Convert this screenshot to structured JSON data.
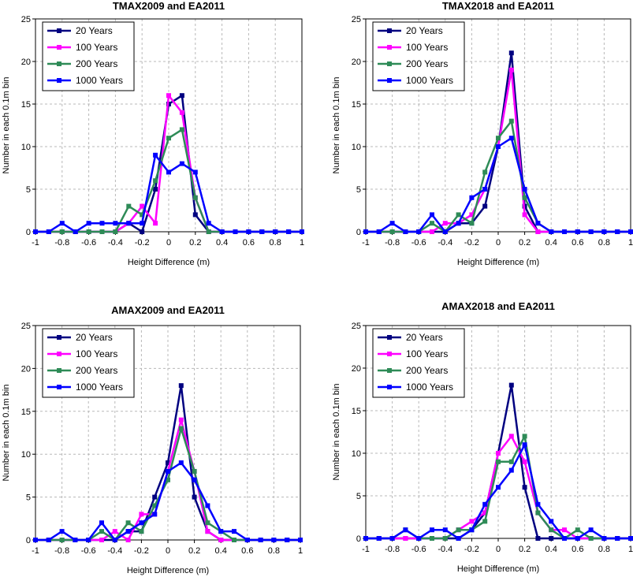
{
  "chart_data": [
    {
      "type": "line",
      "title": "TMAX2009 and EA2011",
      "xlabel": "Height Difference (m)",
      "ylabel": "Number in each 0.1m bin",
      "xlim": [
        -1,
        1
      ],
      "ylim": [
        0,
        25
      ],
      "xticks": [
        "-1",
        "-0.8",
        "-0.6",
        "-0.4",
        "-0.2",
        "0",
        "0.2",
        "0.4",
        "0.6",
        "0.8",
        "1"
      ],
      "yticks": [
        "0",
        "5",
        "10",
        "15",
        "20",
        "25"
      ],
      "grid": true,
      "legend_position": "top-left",
      "x": [
        -1,
        -0.9,
        -0.8,
        -0.7,
        -0.6,
        -0.5,
        -0.4,
        -0.3,
        -0.2,
        -0.1,
        0,
        0.1,
        0.2,
        0.3,
        0.4,
        0.5,
        0.6,
        0.7,
        0.8,
        0.9,
        1
      ],
      "series": [
        {
          "name": "20 Years",
          "color": "#000080",
          "values": [
            0,
            0,
            0,
            0,
            0,
            0,
            0,
            1,
            0,
            5,
            15,
            16,
            2,
            0,
            0,
            0,
            0,
            0,
            0,
            0,
            0
          ]
        },
        {
          "name": "100 Years",
          "color": "#ff00ff",
          "values": [
            0,
            0,
            0,
            0,
            0,
            0,
            0,
            1,
            3,
            1,
            16,
            14,
            4,
            0,
            0,
            0,
            0,
            0,
            0,
            0,
            0
          ]
        },
        {
          "name": "200 Years",
          "color": "#2e8b57",
          "values": [
            0,
            0,
            0,
            0,
            0,
            0,
            0,
            3,
            2,
            6,
            11,
            12,
            4,
            0,
            0,
            0,
            0,
            0,
            0,
            0,
            0
          ]
        },
        {
          "name": "1000 Years",
          "color": "#0000ff",
          "values": [
            0,
            0,
            1,
            0,
            1,
            1,
            1,
            1,
            1,
            9,
            7,
            8,
            7,
            1,
            0,
            0,
            0,
            0,
            0,
            0,
            0
          ]
        }
      ]
    },
    {
      "type": "line",
      "title": "TMAX2018 and EA2011",
      "xlabel": "Height Difference (m)",
      "ylabel": "Number in each 0.1m bin",
      "xlim": [
        -1,
        1
      ],
      "ylim": [
        0,
        25
      ],
      "xticks": [
        "-1",
        "-0.8",
        "-0.6",
        "-0.4",
        "-0.2",
        "0",
        "0.2",
        "0.4",
        "0.6",
        "0.8",
        "1"
      ],
      "yticks": [
        "0",
        "5",
        "10",
        "15",
        "20",
        "25"
      ],
      "grid": true,
      "legend_position": "top-left",
      "x": [
        -1,
        -0.9,
        -0.8,
        -0.7,
        -0.6,
        -0.5,
        -0.4,
        -0.3,
        -0.2,
        -0.1,
        0,
        0.1,
        0.2,
        0.3,
        0.4,
        0.5,
        0.6,
        0.7,
        0.8,
        0.9,
        1
      ],
      "series": [
        {
          "name": "20 Years",
          "color": "#000080",
          "values": [
            0,
            0,
            0,
            0,
            0,
            0,
            0,
            1,
            1,
            3,
            10,
            21,
            3,
            0,
            0,
            0,
            0,
            0,
            0,
            0,
            0
          ]
        },
        {
          "name": "100 Years",
          "color": "#ff00ff",
          "values": [
            0,
            0,
            0,
            0,
            0,
            0,
            1,
            1,
            2,
            5,
            10,
            19,
            2,
            0,
            0,
            0,
            0,
            0,
            0,
            0,
            0
          ]
        },
        {
          "name": "200 Years",
          "color": "#2e8b57",
          "values": [
            0,
            0,
            0,
            0,
            0,
            1,
            0,
            2,
            1,
            7,
            11,
            13,
            4,
            1,
            0,
            0,
            0,
            0,
            0,
            0,
            0
          ]
        },
        {
          "name": "1000 Years",
          "color": "#0000ff",
          "values": [
            0,
            0,
            1,
            0,
            0,
            2,
            0,
            1,
            4,
            5,
            10,
            11,
            5,
            1,
            0,
            0,
            0,
            0,
            0,
            0,
            0
          ]
        }
      ]
    },
    {
      "type": "line",
      "title": "AMAX2009 and EA2011",
      "xlabel": "Height Difference (m)",
      "ylabel": "Number in each 0.1m bin",
      "xlim": [
        -1,
        1
      ],
      "ylim": [
        0,
        25
      ],
      "xticks": [
        "-1",
        "-0.8",
        "-0.6",
        "-0.4",
        "-0.2",
        "0",
        "0.2",
        "0.4",
        "0.6",
        "0.8",
        "1"
      ],
      "yticks": [
        "0",
        "5",
        "10",
        "15",
        "20",
        "25"
      ],
      "grid": true,
      "legend_position": "top-left",
      "x": [
        -1,
        -0.9,
        -0.8,
        -0.7,
        -0.6,
        -0.5,
        -0.4,
        -0.3,
        -0.2,
        -0.1,
        0,
        0.1,
        0.2,
        0.3,
        0.4,
        0.5,
        0.6,
        0.7,
        0.8,
        0.9,
        1
      ],
      "series": [
        {
          "name": "20 Years",
          "color": "#000080",
          "values": [
            0,
            0,
            0,
            0,
            0,
            0,
            0,
            1,
            1,
            5,
            9,
            18,
            5,
            1,
            0,
            0,
            0,
            0,
            0,
            0,
            0
          ]
        },
        {
          "name": "100 Years",
          "color": "#ff00ff",
          "values": [
            0,
            0,
            0,
            0,
            0,
            0,
            1,
            0,
            3,
            3,
            8,
            14,
            8,
            1,
            0,
            0,
            0,
            0,
            0,
            0,
            0
          ]
        },
        {
          "name": "200 Years",
          "color": "#2e8b57",
          "values": [
            0,
            0,
            0,
            0,
            0,
            1,
            0,
            2,
            1,
            4,
            7,
            13,
            8,
            2,
            1,
            0,
            0,
            0,
            0,
            0,
            0
          ]
        },
        {
          "name": "1000 Years",
          "color": "#0000ff",
          "values": [
            0,
            0,
            1,
            0,
            0,
            2,
            0,
            1,
            2,
            3,
            8,
            9,
            7,
            4,
            1,
            1,
            0,
            0,
            0,
            0,
            0
          ]
        }
      ]
    },
    {
      "type": "line",
      "title": "AMAX2018 and EA2011",
      "xlabel": "Height Difference (m)",
      "ylabel": "Number in each 0.1m bin",
      "xlim": [
        -1,
        1
      ],
      "ylim": [
        0,
        25
      ],
      "xticks": [
        "-1",
        "-0.8",
        "-0.6",
        "-0.4",
        "-0.2",
        "0",
        "0.2",
        "0.4",
        "0.6",
        "0.8",
        "1"
      ],
      "yticks": [
        "0",
        "5",
        "10",
        "15",
        "20",
        "25"
      ],
      "grid": true,
      "legend_position": "top-left",
      "x": [
        -1,
        -0.9,
        -0.8,
        -0.7,
        -0.6,
        -0.5,
        -0.4,
        -0.3,
        -0.2,
        -0.1,
        0,
        0.1,
        0.2,
        0.3,
        0.4,
        0.5,
        0.6,
        0.7,
        0.8,
        0.9,
        1
      ],
      "series": [
        {
          "name": "20 Years",
          "color": "#000080",
          "values": [
            0,
            0,
            0,
            0,
            0,
            0,
            0,
            0,
            1,
            3,
            10,
            18,
            6,
            0,
            0,
            0,
            0,
            0,
            0,
            0,
            0
          ]
        },
        {
          "name": "100 Years",
          "color": "#ff00ff",
          "values": [
            0,
            0,
            0,
            0,
            0,
            0,
            0,
            1,
            2,
            3,
            10,
            12,
            9,
            3,
            1,
            1,
            0,
            0,
            0,
            0,
            0
          ]
        },
        {
          "name": "200 Years",
          "color": "#2e8b57",
          "values": [
            0,
            0,
            0,
            1,
            0,
            0,
            0,
            1,
            1,
            2,
            9,
            9,
            12,
            3,
            1,
            0,
            1,
            0,
            0,
            0,
            0
          ]
        },
        {
          "name": "1000 Years",
          "color": "#0000ff",
          "values": [
            0,
            0,
            0,
            1,
            0,
            1,
            1,
            0,
            1,
            4,
            6,
            8,
            11,
            4,
            2,
            0,
            0,
            1,
            0,
            0,
            0
          ]
        }
      ]
    }
  ]
}
